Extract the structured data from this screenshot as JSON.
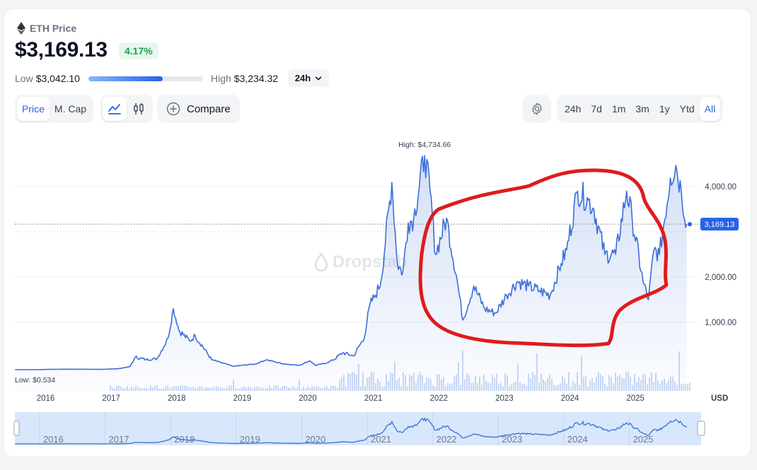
{
  "asset": {
    "name": "ETH Price",
    "icon": "ethereum-icon"
  },
  "price": "$3,169.13",
  "change": "4.17%",
  "range": {
    "low_label": "Low",
    "low_value": "$3,042.10",
    "high_label": "High",
    "high_value": "$3,234.32",
    "position": 0.65
  },
  "timeframe_select": "24h",
  "metric_tabs": [
    {
      "label": "Price",
      "active": true
    },
    {
      "label": "M. Cap",
      "active": false
    }
  ],
  "chart_type_icons": [
    {
      "icon": "line-chart-icon",
      "active": true
    },
    {
      "icon": "candlestick-icon",
      "active": false
    }
  ],
  "compare_label": "Compare",
  "periods": [
    {
      "label": "24h",
      "active": false
    },
    {
      "label": "7d",
      "active": false
    },
    {
      "label": "1m",
      "active": false
    },
    {
      "label": "3m",
      "active": false
    },
    {
      "label": "1y",
      "active": false
    },
    {
      "label": "Ytd",
      "active": false
    },
    {
      "label": "All",
      "active": true
    }
  ],
  "watermark": "Dropstab",
  "colors": {
    "accent": "#2563eb",
    "line": "#3b6fd8",
    "positive": "#16a34a",
    "annotation": "#e01b1b"
  },
  "chart_data": {
    "type": "area",
    "x": [
      "2015-08",
      "2015-12",
      "2016-03",
      "2016-06",
      "2016-09",
      "2016-12",
      "2017-03",
      "2017-05",
      "2017-06",
      "2017-08",
      "2017-10",
      "2017-12",
      "2018-01",
      "2018-02",
      "2018-04",
      "2018-05",
      "2018-08",
      "2018-10",
      "2018-12",
      "2019-02",
      "2019-04",
      "2019-06",
      "2019-09",
      "2019-12",
      "2020-02",
      "2020-03",
      "2020-05",
      "2020-08",
      "2020-10",
      "2020-12",
      "2021-01",
      "2021-02",
      "2021-03",
      "2021-05",
      "2021-06",
      "2021-07",
      "2021-08",
      "2021-09",
      "2021-11",
      "2021-12",
      "2022-01",
      "2022-03",
      "2022-05",
      "2022-06",
      "2022-08",
      "2022-10",
      "2022-12",
      "2023-02",
      "2023-04",
      "2023-06",
      "2023-08",
      "2023-10",
      "2023-12",
      "2024-01",
      "2024-03",
      "2024-05",
      "2024-06",
      "2024-08",
      "2024-10",
      "2024-12",
      "2025-01",
      "2025-03",
      "2025-04",
      "2025-05",
      "2025-06",
      "2025-08",
      "2025-09",
      "2025-10",
      "2025-11"
    ],
    "y": [
      1,
      1,
      10,
      14,
      12,
      8,
      30,
      90,
      350,
      300,
      320,
      700,
      1300,
      850,
      650,
      750,
      300,
      200,
      100,
      140,
      170,
      300,
      180,
      130,
      270,
      130,
      200,
      430,
      370,
      730,
      1400,
      1600,
      1900,
      4100,
      2300,
      2100,
      3200,
      3300,
      4734.66,
      3900,
      2500,
      3300,
      1900,
      1050,
      1800,
      1300,
      1200,
      1600,
      1900,
      1800,
      1700,
      1600,
      2300,
      2600,
      3900,
      3700,
      3500,
      2500,
      2500,
      3900,
      3300,
      1900,
      1500,
      2600,
      2500,
      4200,
      4500,
      3900,
      3169.13
    ],
    "yticks": [
      "1,000.00",
      "2,000.00",
      "4,000.00"
    ],
    "xticks": [
      "2016",
      "2017",
      "2018",
      "2019",
      "2020",
      "2021",
      "2022",
      "2023",
      "2024",
      "2025"
    ],
    "xunit": "USD",
    "current_value": "3,169.13",
    "high_label": "High: $4,734.66",
    "low_label": "Low: $0.534",
    "grid": true,
    "volume_bars": true,
    "navigator_xticks": [
      "2016",
      "2017",
      "2018",
      "2019",
      "2020",
      "2021",
      "2022",
      "2023",
      "2024",
      "2025"
    ]
  }
}
